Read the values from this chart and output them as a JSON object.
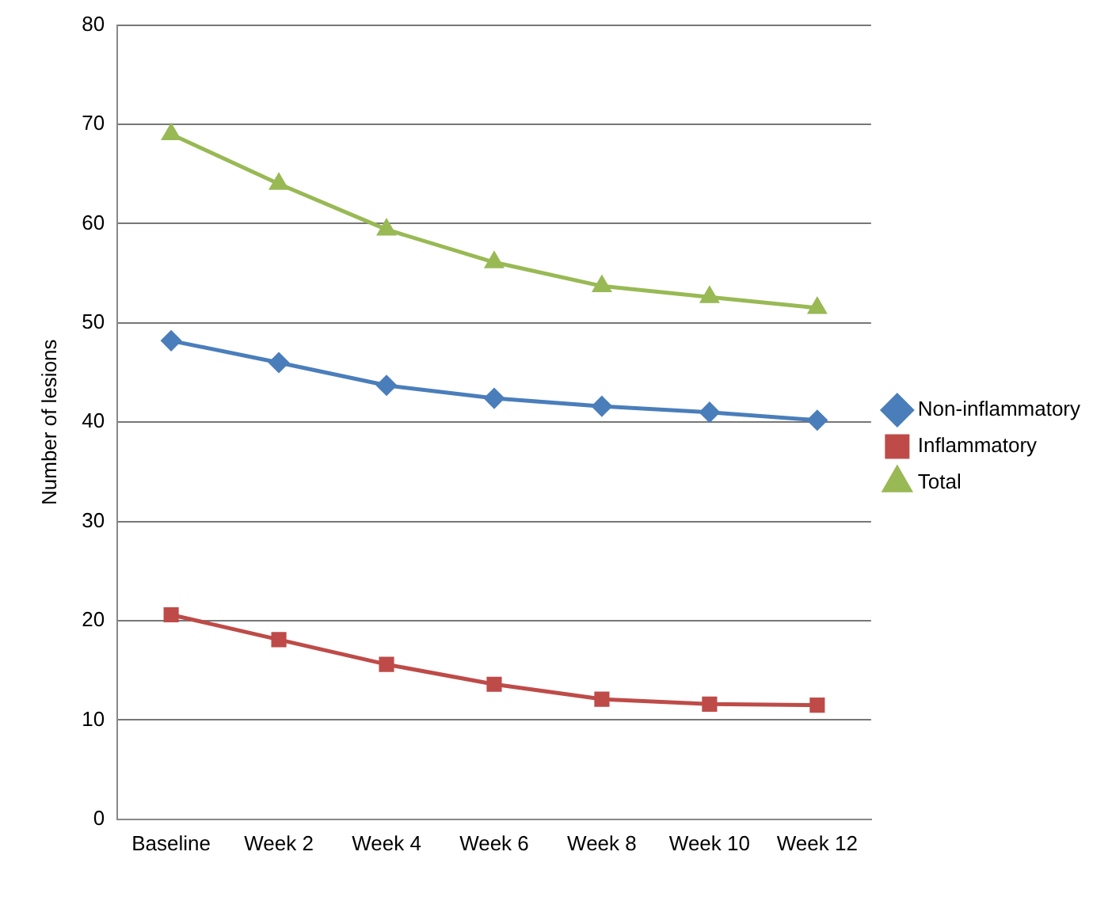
{
  "chart_data": {
    "type": "line",
    "ylabel": "Number of lesions",
    "categories": [
      "Baseline",
      "Week 2",
      "Week 4",
      "Week 6",
      "Week 8",
      "Week 10",
      "Week 12"
    ],
    "series": [
      {
        "name": "Non-inflammatory",
        "color": "#4a7ebb",
        "marker": "diamond",
        "values": [
          48.2,
          46.0,
          43.7,
          42.4,
          41.6,
          41.0,
          40.2
        ]
      },
      {
        "name": "Inflammatory",
        "color": "#be4b48",
        "marker": "square",
        "values": [
          20.6,
          18.1,
          15.6,
          13.6,
          12.1,
          11.6,
          11.5
        ]
      },
      {
        "name": "Total",
        "color": "#98b954",
        "marker": "triangle",
        "values": [
          69.0,
          64.0,
          59.4,
          56.1,
          53.7,
          52.6,
          51.5
        ]
      }
    ],
    "ylim": [
      0,
      80
    ],
    "yticks": [
      0,
      10,
      20,
      30,
      40,
      50,
      60,
      70,
      80
    ],
    "grid": "y",
    "legend": "right",
    "line_style": "solid"
  }
}
